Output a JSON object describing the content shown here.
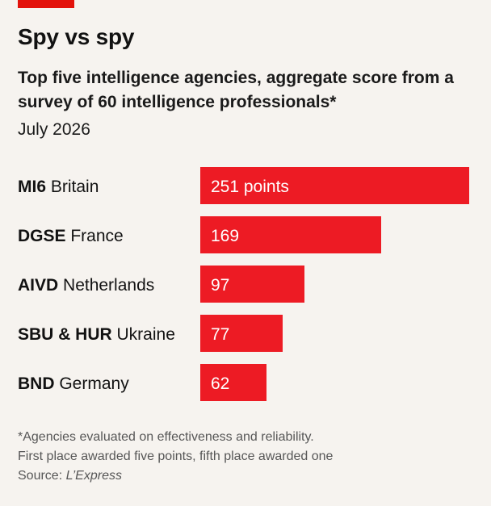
{
  "header": {
    "title": "Spy vs spy",
    "subtitle": "Top five intelligence agencies, aggregate score from a survey of 60 intelligence professionals*",
    "date": "July 2026"
  },
  "colors": {
    "accent": "#e3120b",
    "bar": "#ed1b24",
    "text": "#121212",
    "background": "#f6f3ef",
    "muted": "#575757"
  },
  "chart_data": {
    "type": "bar",
    "orientation": "horizontal",
    "categories": [
      {
        "agency": "MI6",
        "country": "Britain"
      },
      {
        "agency": "DGSE",
        "country": "France"
      },
      {
        "agency": "AIVD",
        "country": "Netherlands"
      },
      {
        "agency": "SBU & HUR",
        "country": "Ukraine"
      },
      {
        "agency": "BND",
        "country": "Germany"
      }
    ],
    "values": [
      251,
      169,
      97,
      77,
      62
    ],
    "value_labels": [
      "251 points",
      "169",
      "97",
      "77",
      "62"
    ],
    "xlim": [
      0,
      251
    ],
    "grid": false,
    "legend": "none"
  },
  "footer": {
    "note_line1": "*Agencies evaluated on effectiveness and reliability.",
    "note_line2": "First place awarded five points, fifth place awarded one",
    "source_prefix": "Source: ",
    "source_name": "L’Express"
  }
}
